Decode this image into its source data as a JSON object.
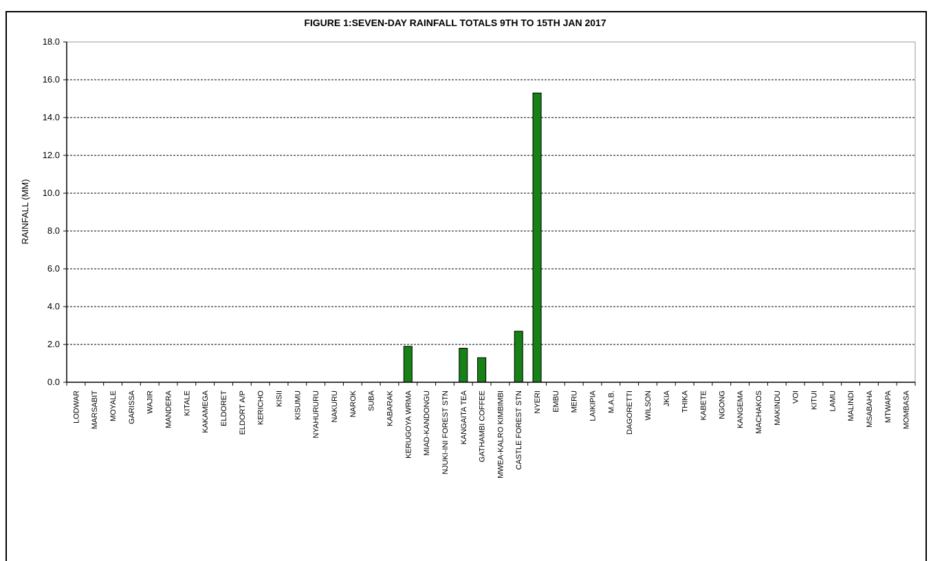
{
  "chart_data": {
    "type": "bar",
    "title": "FIGURE 1:SEVEN-DAY RAINFALL TOTALS 9TH TO 15TH JAN 2017",
    "xlabel": "",
    "ylabel": "RAINFALL (MM)",
    "ylim": [
      0,
      18
    ],
    "yticks": [
      "0.0",
      "2.0",
      "4.0",
      "6.0",
      "8.0",
      "10.0",
      "12.0",
      "14.0",
      "16.0",
      "18.0"
    ],
    "grid": true,
    "bar_color": "#178017",
    "categories": [
      "LODWAR",
      "MARSABIT",
      "MOYALE",
      "GARISSA",
      "WAJIR",
      "MANDERA",
      "KITALE",
      "KAKAMEGA",
      "ELDORET",
      "ELDORT A/P",
      "KERICHO",
      "KISII",
      "KISUMU",
      "NYAHURURU",
      "NAKURU",
      "NAROK",
      "SUBA",
      "KABARAK",
      "KERUGOYA WRMA",
      "MIAD-KANDONGU",
      "NJUKI-INI FOREST STN",
      "KANGAITA TEA",
      "GATHAMBI COFFEE",
      "MWEA-KALRO KIMBIMBI",
      "CASTLE FOREST STN",
      "NYERI",
      "EMBU",
      "MERU",
      "LAIKIPIA",
      "M.A.B.",
      "DAGORETTI",
      "WILSON",
      "JKIA",
      "THIKA",
      "KABETE",
      "NGONG",
      "KANGEMA",
      "MACHAKOS",
      "MAKINDU",
      "VOI",
      "KITUI",
      "LAMU",
      "MALINDI",
      "MSABAHA",
      "MTWAPA",
      "MOMBASA"
    ],
    "values": [
      0,
      0,
      0,
      0,
      0,
      0,
      0,
      0,
      0,
      0,
      0,
      0,
      0,
      0,
      0,
      0,
      0,
      0,
      1.9,
      0,
      0,
      1.8,
      1.3,
      0,
      2.7,
      15.3,
      0,
      0,
      0,
      0,
      0,
      0,
      0,
      0,
      0,
      0,
      0,
      0,
      0,
      0,
      0,
      0,
      0,
      0,
      0,
      0
    ]
  }
}
